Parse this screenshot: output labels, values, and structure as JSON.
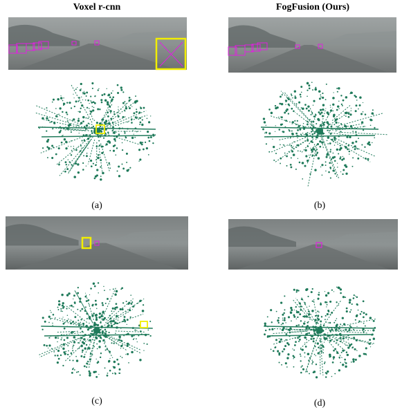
{
  "columns": [
    "Voxel r-cnn",
    "FogFusion (Ours)"
  ],
  "panels": [
    {
      "label": "(a)"
    },
    {
      "label": "(b)"
    },
    {
      "label": "(c)"
    },
    {
      "label": "(d)"
    }
  ]
}
